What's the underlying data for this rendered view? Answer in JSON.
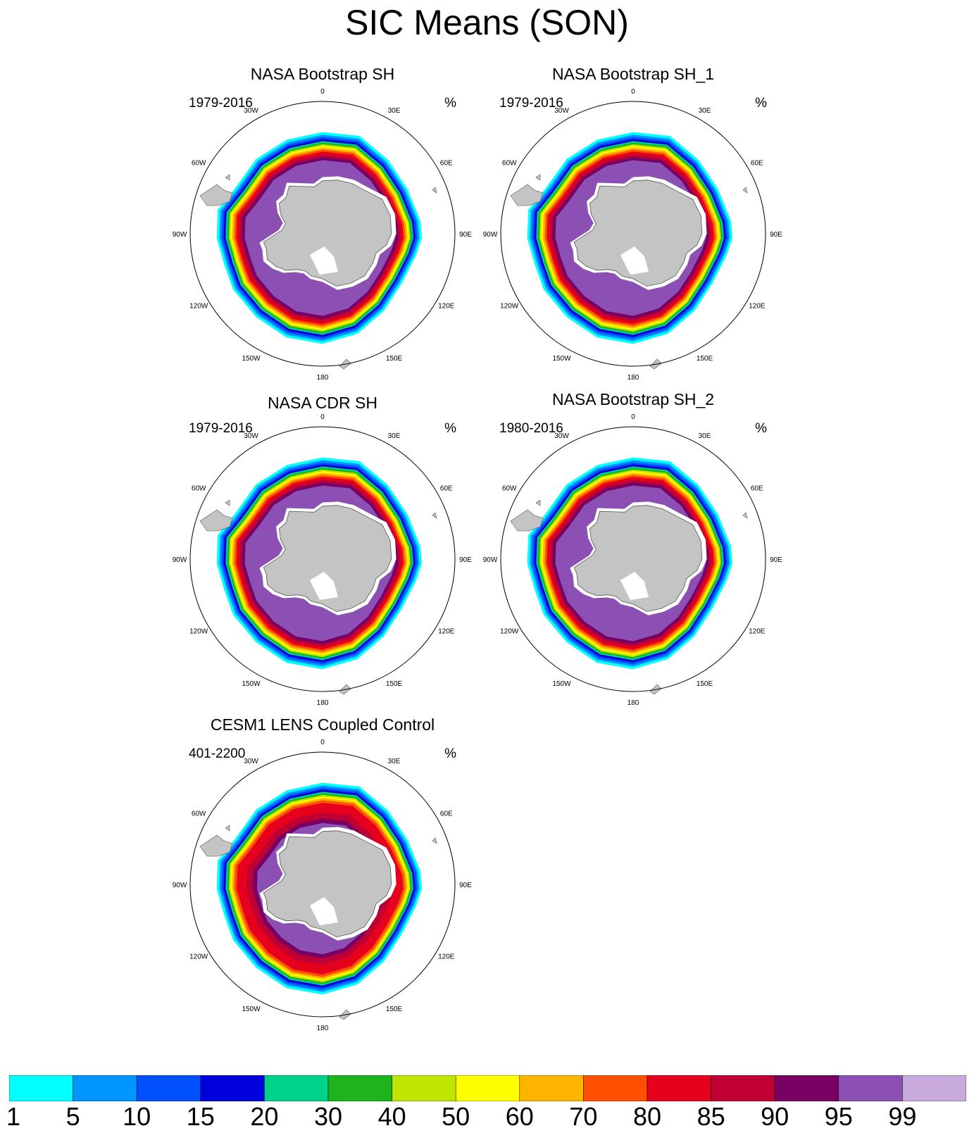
{
  "title": "SIC Means (SON)",
  "chart_data": {
    "type": "heatmap",
    "projection": "south polar stereographic",
    "longitude_labels": [
      "0",
      "30E",
      "60E",
      "90E",
      "120E",
      "150E",
      "180",
      "150W",
      "120W",
      "90W",
      "60W",
      "30W"
    ],
    "unit": "%",
    "panels": [
      {
        "name": "NASA Bootstrap SH",
        "period": "1979-2016",
        "style": "obs"
      },
      {
        "name": "NASA Bootstrap SH_1",
        "period": "1979-2016",
        "style": "obs"
      },
      {
        "name": "NASA CDR SH",
        "period": "1979-2016",
        "style": "obs"
      },
      {
        "name": "NASA Bootstrap SH_2",
        "period": "1980-2016",
        "style": "obs"
      },
      {
        "name": "CESM1 LENS Coupled Control",
        "period": "401-2200",
        "style": "model"
      }
    ],
    "colorbar": {
      "levels": [
        "1",
        "5",
        "10",
        "15",
        "20",
        "30",
        "40",
        "50",
        "60",
        "70",
        "80",
        "85",
        "90",
        "95",
        "99"
      ],
      "colors": [
        "#00ffff",
        "#0096ff",
        "#0050ff",
        "#0000dc",
        "#00d28c",
        "#1eb41e",
        "#bee600",
        "#ffff00",
        "#ffb400",
        "#ff5000",
        "#e6001e",
        "#be0032",
        "#780064",
        "#8c50b4",
        "#c8aadc"
      ]
    }
  },
  "colors": {
    "land": "#c4c4c4",
    "coastline": "#555555",
    "frame": "#000000"
  }
}
